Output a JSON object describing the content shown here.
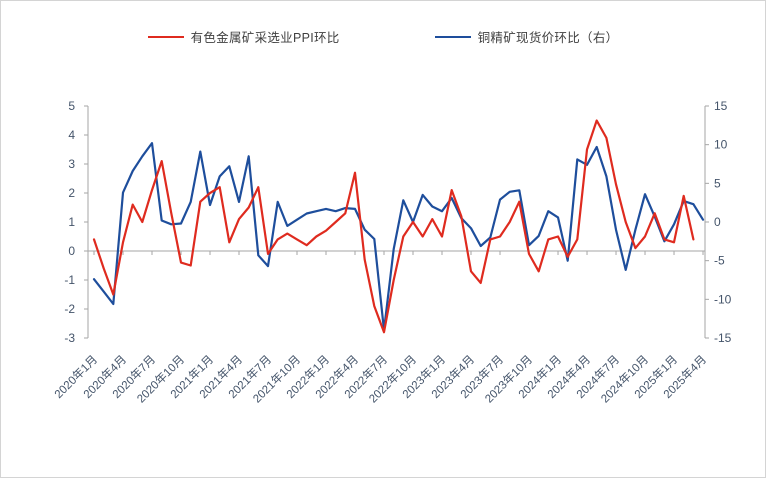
{
  "chart_data": {
    "type": "line",
    "title": "",
    "x_tick_labels": [
      "2020年1月",
      "2020年4月",
      "2020年7月",
      "2020年10月",
      "2021年1月",
      "2021年4月",
      "2021年7月",
      "2021年10月",
      "2022年1月",
      "2022年4月",
      "2022年7月",
      "2022年10月",
      "2023年1月",
      "2023年4月",
      "2023年7月",
      "2023年10月",
      "2024年1月",
      "2024年4月",
      "2024年7月",
      "2024年10月",
      "2025年1月",
      "2025年4月"
    ],
    "x_start_month": "2020年1月",
    "x_end_month": "2025年4月",
    "x_label_interval_months": 3,
    "left_axis": {
      "min": -3,
      "max": 5,
      "ticks": [
        5,
        4,
        3,
        2,
        1,
        0,
        -1,
        -2,
        -3
      ]
    },
    "right_axis": {
      "min": -15,
      "max": 15,
      "ticks": [
        15,
        10,
        5,
        0,
        -5,
        -10,
        -15
      ]
    },
    "grid": "none (only zero baseline shown)",
    "legend_position": "top-center",
    "series": [
      {
        "name": "有色金属矿采选业PPI环比",
        "axis": "left",
        "color": "#df2b1f",
        "values": [
          0.4,
          -0.6,
          -1.5,
          0.3,
          1.6,
          1.0,
          2.1,
          3.1,
          1.3,
          -0.4,
          -0.5,
          1.7,
          2.0,
          2.2,
          0.3,
          1.1,
          1.5,
          2.2,
          -0.1,
          0.4,
          0.6,
          0.4,
          0.2,
          0.5,
          0.7,
          1.0,
          1.3,
          2.7,
          -0.3,
          -1.9,
          -2.8,
          -1.0,
          0.5,
          1.0,
          0.5,
          1.1,
          0.5,
          2.1,
          1.2,
          -0.7,
          -1.1,
          0.4,
          0.5,
          1.0,
          1.7,
          -0.1,
          -0.7,
          0.4,
          0.5,
          -0.2,
          0.4,
          3.5,
          4.5,
          3.9,
          2.3,
          1.0,
          0.1,
          0.5,
          1.3,
          0.4,
          0.3,
          1.9,
          0.4
        ]
      },
      {
        "name": "铜精矿现货价环比（右）",
        "axis": "right",
        "color": "#1e4e9c",
        "values": [
          -7.4,
          -9.0,
          -10.6,
          3.8,
          6.6,
          8.5,
          10.2,
          0.2,
          -0.3,
          -0.2,
          2.6,
          9.1,
          2.2,
          5.9,
          7.2,
          2.6,
          8.5,
          -4.3,
          -5.7,
          2.6,
          -0.5,
          0.3,
          1.1,
          1.4,
          1.7,
          1.4,
          1.8,
          1.7,
          -1.0,
          -2.2,
          -14.0,
          -3.5,
          2.8,
          0.0,
          3.5,
          2.0,
          1.4,
          3.1,
          0.5,
          -0.8,
          -3.1,
          -2.0,
          2.9,
          3.9,
          4.1,
          -3.0,
          -1.8,
          1.4,
          0.6,
          -5.0,
          8.1,
          7.4,
          9.7,
          5.9,
          -1.0,
          -6.2,
          -1.0,
          3.6,
          0.7,
          -2.5,
          -0.3,
          2.7,
          2.3,
          0.3
        ]
      }
    ],
    "axis_line_color": "#a6a6a6",
    "tick_label_color": "#44546a"
  }
}
